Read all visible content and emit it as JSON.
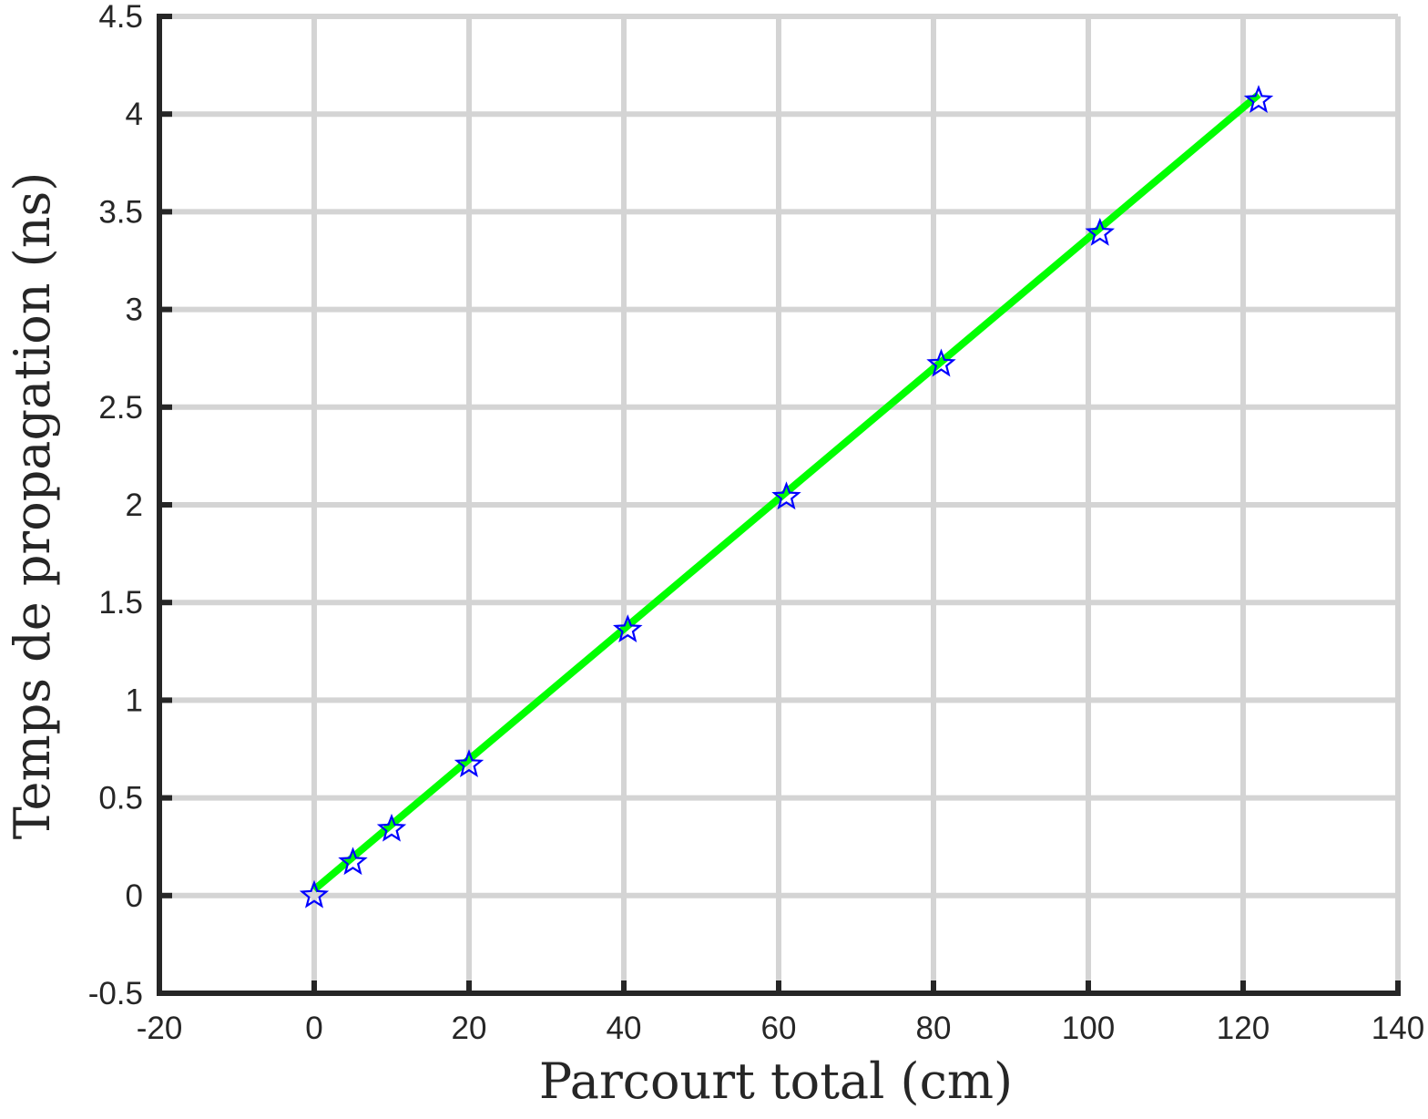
{
  "chart_data": {
    "type": "scatter",
    "title": "",
    "xlabel": "Parcourt total (cm)",
    "ylabel": "Temps de propagation (ns)",
    "xlim": [
      -20,
      140
    ],
    "ylim": [
      -0.5,
      4.5
    ],
    "xticks": [
      -20,
      0,
      20,
      40,
      60,
      80,
      100,
      120,
      140
    ],
    "xtick_labels": [
      "-20",
      "0",
      "20",
      "40",
      "60",
      "80",
      "100",
      "120",
      "140"
    ],
    "yticks": [
      -0.5,
      0,
      0.5,
      1,
      1.5,
      2,
      2.5,
      3,
      3.5,
      4,
      4.5
    ],
    "ytick_labels": [
      "-0.5",
      "0",
      "0.5",
      "1",
      "1.5",
      "2",
      "2.5",
      "3",
      "3.5",
      "4",
      "4.5"
    ],
    "grid": true,
    "series": [
      {
        "kind": "markers",
        "marker": "star",
        "color": "#0000ff",
        "x": [
          0,
          5,
          10,
          20,
          40.5,
          61,
          81,
          101.5,
          122
        ],
        "y": [
          0.0,
          0.17,
          0.34,
          0.67,
          1.36,
          2.04,
          2.72,
          3.39,
          4.07
        ]
      },
      {
        "kind": "fit-line",
        "color": "#00ff00",
        "x": [
          0,
          122
        ],
        "y": [
          0.03,
          4.1
        ]
      }
    ]
  }
}
